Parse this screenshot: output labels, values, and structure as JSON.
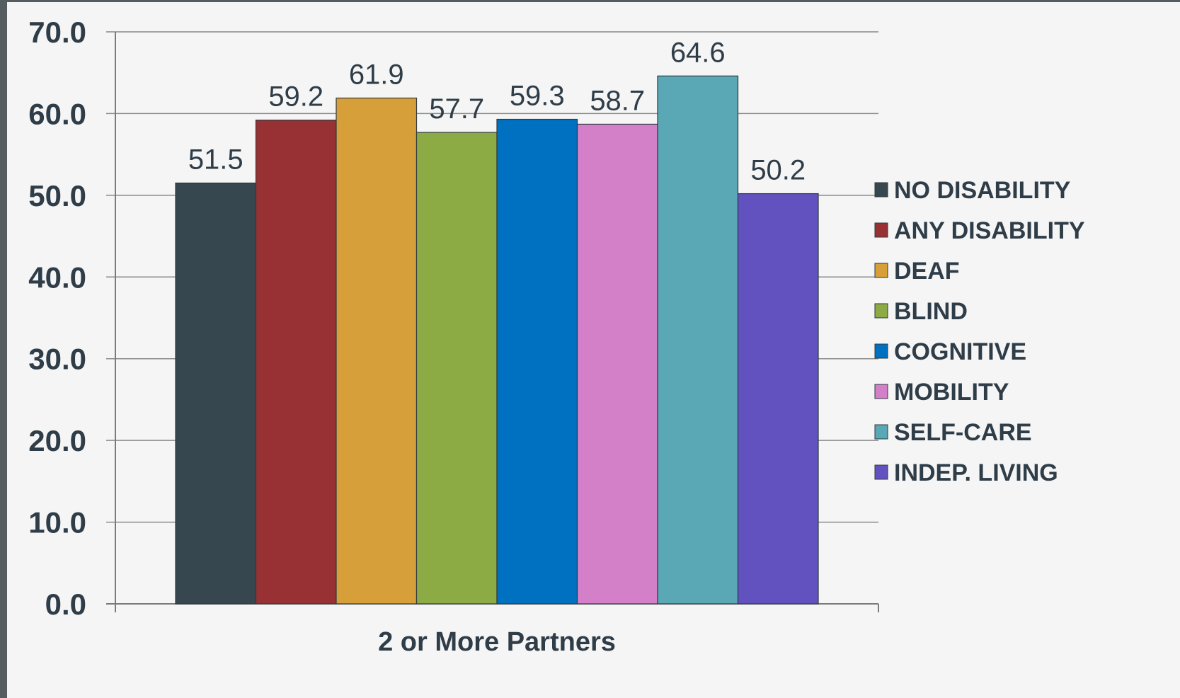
{
  "chart_data": {
    "type": "bar",
    "categories": [
      "2 or More Partners"
    ],
    "series": [
      {
        "name": "NO DISABILITY",
        "values": [
          51.5
        ],
        "color": "#36474f"
      },
      {
        "name": "ANY DISABILITY",
        "values": [
          59.2
        ],
        "color": "#973134"
      },
      {
        "name": "DEAF",
        "values": [
          61.9
        ],
        "color": "#d79f39"
      },
      {
        "name": "BLIND",
        "values": [
          57.7
        ],
        "color": "#8dab44"
      },
      {
        "name": "COGNITIVE",
        "values": [
          59.3
        ],
        "color": "#0070c0"
      },
      {
        "name": "MOBILITY",
        "values": [
          58.7
        ],
        "color": "#d480c9"
      },
      {
        "name": "SELF-CARE",
        "values": [
          64.6
        ],
        "color": "#5aa8b5"
      },
      {
        "name": "INDEP. LIVING",
        "values": [
          50.2
        ],
        "color": "#6252c0"
      }
    ],
    "value_labels": [
      "51.5",
      "59.2",
      "61.9",
      "57.7",
      "59.3",
      "58.7",
      "64.6",
      "50.2"
    ],
    "yticks": [
      "0.0",
      "10.0",
      "20.0",
      "30.0",
      "40.0",
      "50.0",
      "60.0",
      "70.0"
    ],
    "ylim": [
      0,
      70
    ],
    "grid": true,
    "legend_position": "right",
    "title": "",
    "xlabel": "",
    "ylabel": ""
  }
}
